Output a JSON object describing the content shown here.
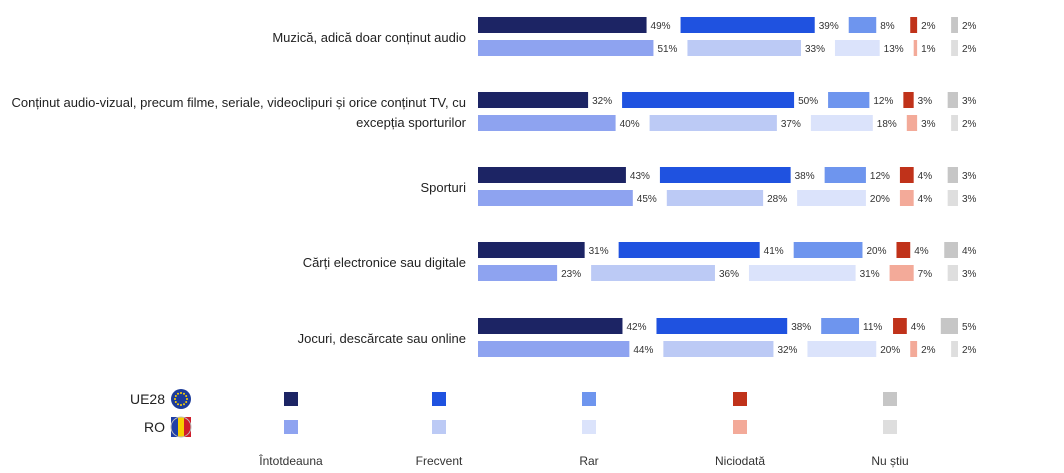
{
  "chart_data": {
    "type": "bar",
    "stacked": true,
    "orientation": "horizontal",
    "categories": [
      [
        "Muzică, adică doar conținut audio"
      ],
      [
        "Conținut audio-vizual, precum filme, seriale, videoclipuri și orice conținut TV, cu",
        "excepția sporturilor"
      ],
      [
        "Sporturi"
      ],
      [
        "Cărți electronice sau digitale"
      ],
      [
        "Jocuri, descărcate sau online"
      ]
    ],
    "groups": [
      {
        "name": "UE28",
        "flag": "eu-flag-icon"
      },
      {
        "name": "RO",
        "flag": "ro-flag-icon"
      }
    ],
    "series": [
      {
        "name": "Întotdeauna",
        "colors": [
          "#1c2464",
          "#8ea3f0"
        ]
      },
      {
        "name": "Frecvent",
        "colors": [
          "#1f52e0",
          "#bccaf5"
        ]
      },
      {
        "name": "Rar",
        "colors": [
          "#6e95ee",
          "#dbe3fb"
        ]
      },
      {
        "name": "Niciodată",
        "colors": [
          "#c0321a",
          "#f3aa99"
        ]
      },
      {
        "name": "Nu știu",
        "colors": [
          "#c6c6c6",
          "#dedede"
        ]
      }
    ],
    "values": {
      "UE28": [
        [
          49,
          39,
          8,
          2,
          2
        ],
        [
          32,
          50,
          12,
          3,
          3
        ],
        [
          43,
          38,
          12,
          4,
          3
        ],
        [
          31,
          41,
          20,
          4,
          4
        ],
        [
          42,
          38,
          11,
          4,
          5
        ]
      ],
      "RO": [
        [
          51,
          33,
          13,
          1,
          2
        ],
        [
          40,
          37,
          18,
          3,
          2
        ],
        [
          45,
          28,
          20,
          4,
          3
        ],
        [
          23,
          36,
          31,
          7,
          3
        ],
        [
          44,
          32,
          20,
          2,
          2
        ]
      ]
    },
    "value_suffix": "%",
    "legend": "bottom"
  }
}
